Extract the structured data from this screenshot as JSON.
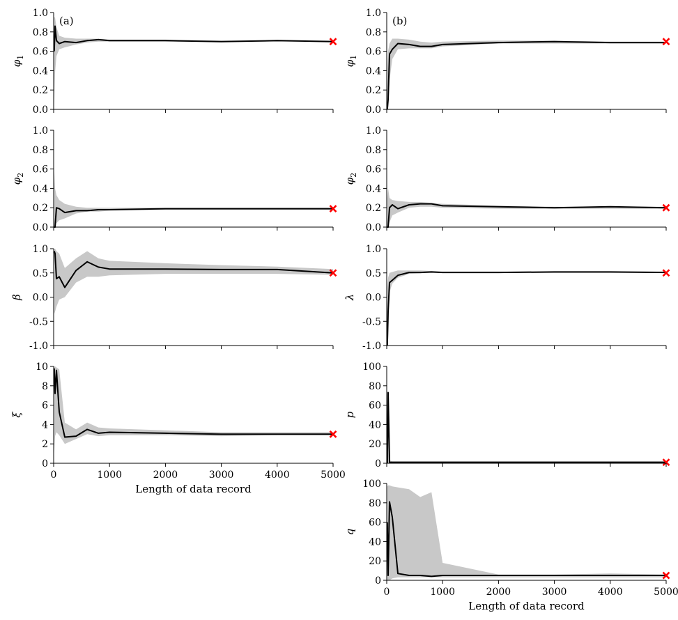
{
  "figure": {
    "shared_xlabel": "Length of data record",
    "panel_tags": [
      "(a)",
      "(b)"
    ],
    "truth_marker_color": "#ff0000",
    "band_color": "#c8c8c8",
    "line_color": "#000000"
  },
  "chart_data": [
    {
      "type": "line",
      "id": "a1",
      "column": "a",
      "panel_tag": "(a)",
      "ylabel": "φ1",
      "ylabel_main": "φ",
      "ylabel_sub": "1",
      "xlim": [
        0,
        5000
      ],
      "ylim": [
        0.0,
        1.0
      ],
      "xticks": [],
      "yticks": [
        "0.0",
        "0.2",
        "0.4",
        "0.6",
        "0.8",
        "1.0"
      ],
      "x": [
        10,
        25,
        50,
        100,
        200,
        400,
        600,
        800,
        1000,
        2000,
        3000,
        4000,
        5000
      ],
      "series": [
        {
          "values": [
            0.6,
            0.86,
            0.71,
            0.68,
            0.7,
            0.69,
            0.71,
            0.72,
            0.71,
            0.71,
            0.7,
            0.71,
            0.7
          ]
        },
        {
          "band_lower": [
            0.0,
            0.38,
            0.55,
            0.62,
            0.64,
            0.67,
            0.69,
            0.7,
            0.7,
            0.7,
            0.7,
            0.7,
            0.7
          ],
          "band_upper": [
            0.95,
            0.95,
            0.85,
            0.76,
            0.74,
            0.73,
            0.73,
            0.73,
            0.72,
            0.72,
            0.71,
            0.71,
            0.71
          ]
        }
      ],
      "truth": {
        "x": 5000,
        "y": 0.7
      }
    },
    {
      "type": "line",
      "id": "a2",
      "column": "a",
      "ylabel": "φ2",
      "ylabel_main": "φ",
      "ylabel_sub": "2",
      "xlim": [
        0,
        5000
      ],
      "ylim": [
        0.0,
        1.0
      ],
      "xticks": [],
      "yticks": [
        "0.0",
        "0.2",
        "0.4",
        "0.6",
        "0.8",
        "1.0"
      ],
      "x": [
        10,
        25,
        50,
        100,
        200,
        400,
        600,
        800,
        1000,
        2000,
        3000,
        4000,
        5000
      ],
      "series": [
        {
          "values": [
            0.0,
            0.0,
            0.2,
            0.19,
            0.15,
            0.17,
            0.17,
            0.18,
            0.18,
            0.19,
            0.19,
            0.19,
            0.19
          ]
        },
        {
          "band_lower": [
            0.0,
            0.0,
            0.04,
            0.07,
            0.09,
            0.14,
            0.16,
            0.16,
            0.17,
            0.18,
            0.18,
            0.18,
            0.18
          ],
          "band_upper": [
            0.6,
            0.4,
            0.33,
            0.28,
            0.24,
            0.21,
            0.2,
            0.2,
            0.2,
            0.2,
            0.2,
            0.2,
            0.2
          ]
        }
      ],
      "truth": {
        "x": 5000,
        "y": 0.19
      }
    },
    {
      "type": "line",
      "id": "a3",
      "column": "a",
      "ylabel": "β",
      "ylabel_main": "β",
      "ylabel_sub": "",
      "xlim": [
        0,
        5000
      ],
      "ylim": [
        -1.0,
        1.0
      ],
      "xticks": [],
      "yticks": [
        "-1.0",
        "-0.5",
        "0.0",
        "0.5",
        "1.0"
      ],
      "x": [
        10,
        25,
        50,
        100,
        200,
        400,
        600,
        800,
        1000,
        2000,
        3000,
        4000,
        5000
      ],
      "series": [
        {
          "values": [
            0.95,
            0.9,
            0.38,
            0.42,
            0.2,
            0.55,
            0.73,
            0.62,
            0.58,
            0.58,
            0.57,
            0.57,
            0.5
          ]
        },
        {
          "band_lower": [
            -0.35,
            -0.3,
            -0.2,
            -0.05,
            0.0,
            0.3,
            0.42,
            0.42,
            0.45,
            0.48,
            0.48,
            0.48,
            0.46
          ],
          "band_upper": [
            1.0,
            1.0,
            0.95,
            0.9,
            0.6,
            0.8,
            0.95,
            0.8,
            0.75,
            0.7,
            0.66,
            0.63,
            0.58
          ]
        }
      ],
      "truth": {
        "x": 5000,
        "y": 0.5
      }
    },
    {
      "type": "line",
      "id": "a4",
      "column": "a",
      "ylabel": "ξ",
      "ylabel_main": "ξ",
      "ylabel_sub": "",
      "xlabel": "Length of data record",
      "xlim": [
        0,
        5000
      ],
      "ylim": [
        0,
        10
      ],
      "xticks": [
        "0",
        "1000",
        "2000",
        "3000",
        "4000",
        "5000"
      ],
      "yticks": [
        "0",
        "2",
        "4",
        "6",
        "8",
        "10"
      ],
      "x": [
        10,
        25,
        50,
        100,
        200,
        400,
        600,
        800,
        1000,
        2000,
        3000,
        4000,
        5000
      ],
      "series": [
        {
          "values": [
            9.8,
            7.2,
            9.6,
            5.3,
            2.7,
            2.8,
            3.5,
            3.1,
            3.2,
            3.1,
            3.0,
            3.0,
            3.0
          ]
        },
        {
          "band_lower": [
            1.0,
            2.8,
            3.2,
            2.9,
            2.0,
            2.5,
            3.0,
            2.8,
            2.9,
            2.9,
            2.8,
            2.9,
            2.9
          ],
          "band_upper": [
            10.0,
            10.0,
            9.9,
            9.7,
            4.2,
            3.5,
            4.2,
            3.7,
            3.6,
            3.4,
            3.2,
            3.2,
            3.2
          ]
        }
      ],
      "truth": {
        "x": 5000,
        "y": 3.0
      }
    },
    {
      "type": "line",
      "id": "b1",
      "column": "b",
      "panel_tag": "(b)",
      "ylabel": "φ1",
      "ylabel_main": "φ",
      "ylabel_sub": "1",
      "xlim": [
        0,
        5000
      ],
      "ylim": [
        0.0,
        1.0
      ],
      "xticks": [],
      "yticks": [
        "0.0",
        "0.2",
        "0.4",
        "0.6",
        "0.8",
        "1.0"
      ],
      "x": [
        10,
        25,
        50,
        100,
        200,
        400,
        600,
        800,
        1000,
        2000,
        3000,
        4000,
        5000
      ],
      "series": [
        {
          "values": [
            0.0,
            0.1,
            0.57,
            0.62,
            0.68,
            0.67,
            0.65,
            0.65,
            0.67,
            0.69,
            0.7,
            0.69,
            0.69
          ]
        },
        {
          "band_lower": [
            0.0,
            0.0,
            0.3,
            0.52,
            0.62,
            0.63,
            0.63,
            0.63,
            0.65,
            0.68,
            0.68,
            0.68,
            0.68
          ],
          "band_upper": [
            0.4,
            0.6,
            0.68,
            0.73,
            0.73,
            0.72,
            0.7,
            0.69,
            0.7,
            0.71,
            0.71,
            0.7,
            0.7
          ]
        }
      ],
      "truth": {
        "x": 5000,
        "y": 0.7
      }
    },
    {
      "type": "line",
      "id": "b2",
      "column": "b",
      "ylabel": "φ2",
      "ylabel_main": "φ",
      "ylabel_sub": "2",
      "xlim": [
        0,
        5000
      ],
      "ylim": [
        0.0,
        1.0
      ],
      "xticks": [],
      "yticks": [
        "0.0",
        "0.2",
        "0.4",
        "0.6",
        "0.8",
        "1.0"
      ],
      "x": [
        10,
        25,
        50,
        100,
        200,
        400,
        600,
        800,
        1000,
        2000,
        3000,
        4000,
        5000
      ],
      "series": [
        {
          "values": [
            0.0,
            0.0,
            0.2,
            0.23,
            0.19,
            0.23,
            0.24,
            0.24,
            0.22,
            0.21,
            0.2,
            0.21,
            0.2
          ]
        },
        {
          "band_lower": [
            0.0,
            0.0,
            0.05,
            0.12,
            0.15,
            0.2,
            0.21,
            0.21,
            0.2,
            0.19,
            0.19,
            0.19,
            0.19
          ],
          "band_upper": [
            0.3,
            0.4,
            0.3,
            0.28,
            0.27,
            0.26,
            0.26,
            0.25,
            0.24,
            0.22,
            0.21,
            0.21,
            0.21
          ]
        }
      ],
      "truth": {
        "x": 5000,
        "y": 0.2
      }
    },
    {
      "type": "line",
      "id": "b3",
      "column": "b",
      "ylabel": "λ",
      "ylabel_main": "λ",
      "ylabel_sub": "",
      "xlim": [
        0,
        5000
      ],
      "ylim": [
        -1.0,
        1.0
      ],
      "xticks": [],
      "yticks": [
        "-1.0",
        "-0.5",
        "0.0",
        "0.5",
        "1.0"
      ],
      "x": [
        10,
        25,
        50,
        100,
        200,
        400,
        600,
        800,
        1000,
        2000,
        3000,
        4000,
        5000
      ],
      "series": [
        {
          "values": [
            -1.0,
            -0.3,
            0.3,
            0.35,
            0.45,
            0.51,
            0.51,
            0.52,
            0.51,
            0.51,
            0.52,
            0.52,
            0.51
          ]
        },
        {
          "band_lower": [
            -1.0,
            -0.9,
            0.1,
            0.28,
            0.4,
            0.48,
            0.49,
            0.5,
            0.5,
            0.5,
            0.5,
            0.5,
            0.5
          ],
          "band_upper": [
            0.2,
            0.4,
            0.5,
            0.52,
            0.55,
            0.55,
            0.55,
            0.54,
            0.53,
            0.53,
            0.53,
            0.53,
            0.53
          ]
        }
      ],
      "truth": {
        "x": 5000,
        "y": 0.5
      }
    },
    {
      "type": "line",
      "id": "b4",
      "column": "b",
      "ylabel": "p",
      "ylabel_main": "p",
      "ylabel_sub": "",
      "xlim": [
        0,
        5000
      ],
      "ylim": [
        0,
        100
      ],
      "xticks": [],
      "yticks": [
        "0",
        "20",
        "40",
        "60",
        "80",
        "100"
      ],
      "x": [
        10,
        25,
        50,
        100,
        200,
        400,
        600,
        800,
        1000,
        2000,
        3000,
        4000,
        5000
      ],
      "series": [
        {
          "values": [
            0,
            73,
            1,
            1,
            1,
            1,
            1,
            1,
            1,
            1,
            1,
            1,
            1
          ]
        },
        {
          "band_lower": [
            0,
            0,
            0,
            0,
            0,
            0,
            0,
            0,
            0,
            0,
            0,
            0,
            0
          ],
          "band_upper": [
            2,
            74,
            3,
            2,
            2,
            2,
            2,
            2,
            2,
            2,
            2,
            2,
            2
          ]
        }
      ],
      "truth": {
        "x": 5000,
        "y": 1
      }
    },
    {
      "type": "line",
      "id": "b5",
      "column": "b",
      "ylabel": "q",
      "ylabel_main": "q",
      "ylabel_sub": "",
      "xlabel": "Length of data record",
      "xlim": [
        0,
        5000
      ],
      "ylim": [
        0,
        100
      ],
      "xticks": [
        "0",
        "1000",
        "2000",
        "3000",
        "4000",
        "5000"
      ],
      "yticks": [
        "0",
        "20",
        "40",
        "60",
        "80",
        "100"
      ],
      "x": [
        10,
        25,
        50,
        100,
        200,
        400,
        600,
        800,
        1000,
        2000,
        3000,
        4000,
        5000
      ],
      "series": [
        {
          "values": [
            60,
            5,
            81,
            65,
            7,
            5,
            5,
            4,
            5,
            5,
            5,
            5,
            5
          ]
        },
        {
          "band_lower": [
            0,
            0,
            0,
            2,
            3,
            3,
            3,
            3,
            3,
            3,
            3,
            3,
            3
          ],
          "band_upper": [
            97,
            98,
            98,
            97,
            96,
            94,
            86,
            91,
            18,
            6,
            6,
            7,
            6
          ]
        }
      ],
      "truth": {
        "x": 5000,
        "y": 5
      }
    }
  ]
}
